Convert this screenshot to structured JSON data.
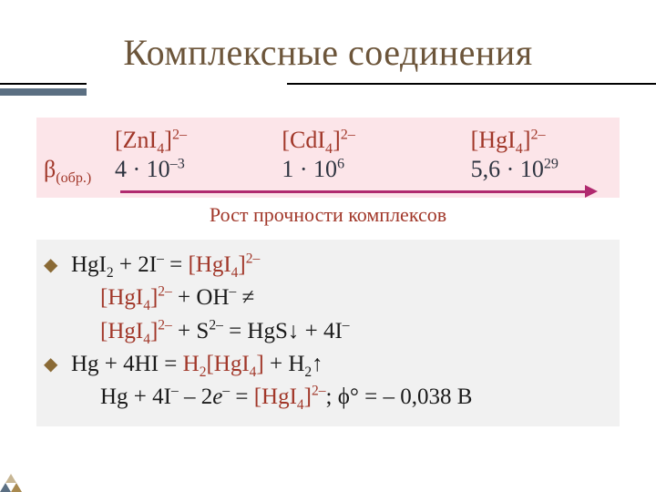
{
  "title": "Комплексные соединения",
  "colors": {
    "title": "#6c553a",
    "accent": "#a13729",
    "arrow": "#b02a6f",
    "pink_bg": "#fce5e9",
    "grey_bg": "#f1f1f1",
    "rule_under": "#5b6f82"
  },
  "fontsize": {
    "title": 40,
    "body": 26,
    "caption": 22
  },
  "beta_label_html": "β<sub>(обр.)</sub>",
  "table": {
    "cols": [
      {
        "formula_html": "[ZnI<sub>4</sub>]<sup>2–</sup>",
        "value_html": "4 · 10<sup>–3</sup>"
      },
      {
        "formula_html": "[CdI<sub>4</sub>]<sup>2–</sup>",
        "value_html": "1 · 10<sup>6</sup>"
      },
      {
        "formula_html": "[HgI<sub>4</sub>]<sup>2–</sup>",
        "value_html": "5,6 · 10<sup>29</sup>"
      }
    ]
  },
  "arrow_caption": "Рост прочности комплексов",
  "bullets": [
    {
      "lines": [
        "HgI<sub>2</sub> + 2I<sup>–</sup> = <span class=\"hg\">[HgI<sub>4</sub>]<sup>2–</sup></span>",
        "<span class=\"hg\">[HgI<sub>4</sub>]<sup>2–</sup></span> + OH<sup>–</sup> ≠",
        "<span class=\"hg\">[HgI<sub>4</sub>]<sup>2–</sup></span> + S<sup>2–</sup> = HgS↓ + 4I<sup>–</sup>"
      ]
    },
    {
      "lines": [
        "Hg + 4HI = <span class=\"hg\">H<sub>2</sub>[HgI<sub>4</sub>]</span> + H<sub>2</sub>↑",
        "Hg + 4I<sup>–</sup> – 2<i>e</i><sup>–</sup> = <span class=\"hg\">[HgI<sub>4</sub>]<sup>2–</sup></span>; ϕ° = – 0,038 В"
      ]
    }
  ]
}
